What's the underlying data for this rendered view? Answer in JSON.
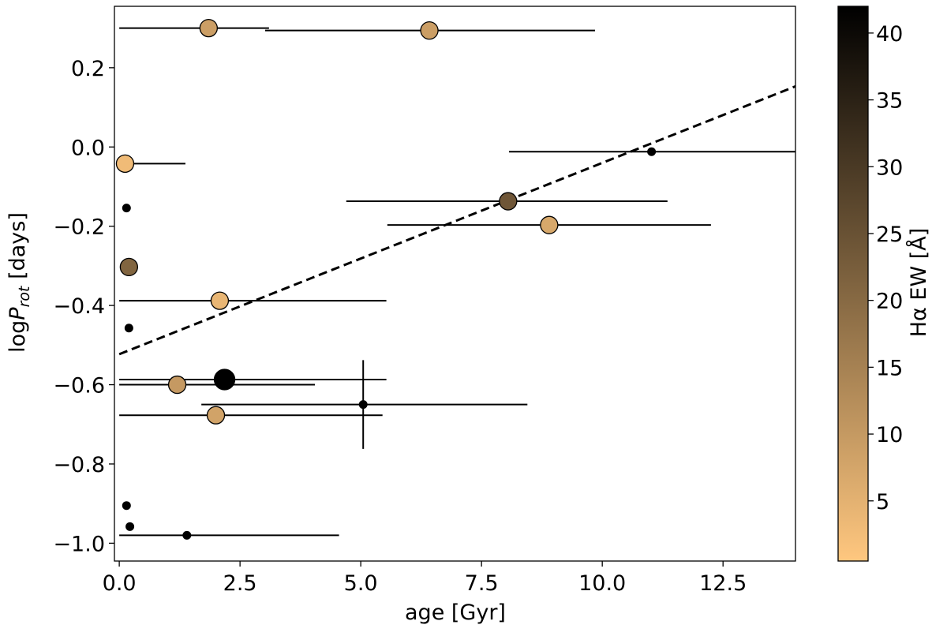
{
  "chart_data": {
    "type": "scatter",
    "xlabel": "age [Gyr]",
    "ylabel": {
      "prefix": "log",
      "var": "P",
      "sub": "rot",
      "suffix": " [days]"
    },
    "xlim": [
      -0.1,
      14.0
    ],
    "ylim": [
      -1.045,
      0.355
    ],
    "x_ticks": [
      0.0,
      2.5,
      5.0,
      7.5,
      10.0,
      12.5
    ],
    "x_tick_labels": [
      "0.0",
      "2.5",
      "5.0",
      "7.5",
      "10.0",
      "12.5"
    ],
    "y_ticks": [
      0.2,
      0.0,
      -0.2,
      -0.4,
      -0.6,
      -0.8,
      -1.0
    ],
    "y_tick_labels": [
      "0.2",
      "0.0",
      "−0.2",
      "−0.4",
      "−0.6",
      "−0.8",
      "−1.0"
    ],
    "grid": false,
    "fit_line": {
      "style": "dashed",
      "x": [
        0.0,
        14.0
      ],
      "y": [
        -0.523,
        0.153
      ]
    },
    "colorbar": {
      "label": "Hα EW [Å]",
      "range": [
        0.5,
        42
      ],
      "ticks": [
        5,
        10,
        15,
        20,
        25,
        30,
        35,
        40
      ],
      "tick_labels": [
        "5",
        "10",
        "15",
        "20",
        "25",
        "30",
        "35",
        "40"
      ],
      "colormap": "copper_r",
      "colors": [
        "#ffc77f",
        "#000000"
      ]
    },
    "points": [
      {
        "x": 1.85,
        "y": 0.3,
        "ew": 9,
        "xerr": [
          1.85,
          1.25
        ],
        "yerr": null
      },
      {
        "x": 6.42,
        "y": 0.294,
        "ew": 9,
        "xerr": [
          3.4,
          3.43
        ],
        "yerr": null
      },
      {
        "x": 0.12,
        "y": -0.042,
        "ew": 3,
        "xerr": [
          0.12,
          1.25
        ],
        "yerr": null
      },
      {
        "x": 0.15,
        "y": -0.154,
        "ew": null,
        "xerr": null,
        "yerr": null
      },
      {
        "x": 11.02,
        "y": -0.012,
        "ew": null,
        "xerr": [
          2.95,
          2.98
        ],
        "yerr": null
      },
      {
        "x": 8.05,
        "y": -0.137,
        "ew": 24,
        "xerr": [
          3.35,
          3.3
        ],
        "yerr": null
      },
      {
        "x": 8.9,
        "y": -0.197,
        "ew": 7,
        "xerr": [
          3.35,
          3.35
        ],
        "yerr": null
      },
      {
        "x": 0.2,
        "y": -0.303,
        "ew": 21,
        "xerr": null,
        "yerr": null
      },
      {
        "x": 2.08,
        "y": -0.388,
        "ew": 4,
        "xerr": [
          2.08,
          3.45
        ],
        "yerr": null
      },
      {
        "x": 0.2,
        "y": -0.457,
        "ew": null,
        "xerr": null,
        "yerr": null
      },
      {
        "x": 2.18,
        "y": -0.587,
        "ew": 42,
        "xerr": [
          2.18,
          3.35
        ],
        "yerr": null
      },
      {
        "x": 1.2,
        "y": -0.6,
        "ew": 10,
        "xerr": [
          1.2,
          2.85
        ],
        "yerr": null
      },
      {
        "x": 5.05,
        "y": -0.65,
        "ew": null,
        "xerr": [
          3.35,
          3.4
        ],
        "yerr": [
          0.112,
          0.112
        ]
      },
      {
        "x": 2.0,
        "y": -0.677,
        "ew": 8,
        "xerr": [
          2.0,
          3.45
        ],
        "yerr": null
      },
      {
        "x": 0.15,
        "y": -0.905,
        "ew": null,
        "xerr": null,
        "yerr": null
      },
      {
        "x": 0.22,
        "y": -0.958,
        "ew": null,
        "xerr": null,
        "yerr": null
      },
      {
        "x": 1.4,
        "y": -0.98,
        "ew": null,
        "xerr": [
          1.4,
          3.15
        ],
        "yerr": null
      }
    ]
  }
}
